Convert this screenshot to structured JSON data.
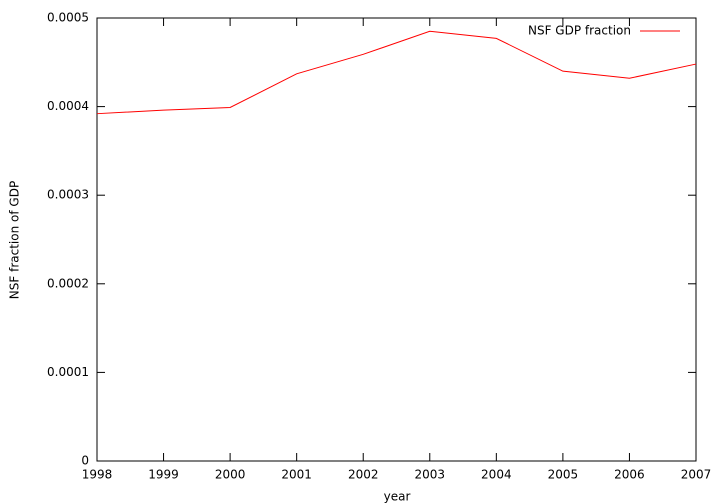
{
  "chart_data": {
    "type": "line",
    "x_label": "year",
    "y_label": "NSF fraction of GDP",
    "x": [
      1998,
      1999,
      2000,
      2001,
      2002,
      2003,
      2004,
      2005,
      2006,
      2007
    ],
    "series": [
      {
        "name": "NSF GDP fraction",
        "color": "#ff0000",
        "values": [
          0.000392,
          0.000396,
          0.000399,
          0.000437,
          0.000459,
          0.000485,
          0.000477,
          0.00044,
          0.000432,
          0.000448
        ]
      }
    ],
    "xlim": [
      1998,
      2007
    ],
    "xticks": [
      1998,
      1999,
      2000,
      2001,
      2002,
      2003,
      2004,
      2005,
      2006,
      2007
    ],
    "ylim": [
      0,
      0.0005
    ],
    "yticks": [
      0,
      0.0001,
      0.0002,
      0.0003,
      0.0004,
      0.0005
    ],
    "legend": "top-right"
  }
}
